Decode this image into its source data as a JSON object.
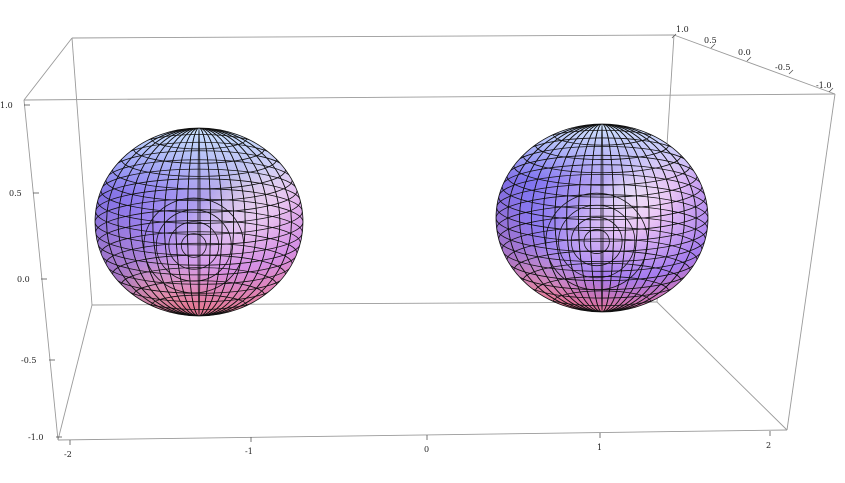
{
  "chart_data": {
    "type": "surface3d",
    "title": "",
    "description_shapes": "two spheres",
    "spheres": [
      {
        "center": [
          -1.2,
          0.0,
          0.4
        ],
        "radius": 0.5
      },
      {
        "center": [
          1.2,
          0.0,
          0.4
        ],
        "radius": 0.5
      }
    ],
    "axes": {
      "x": {
        "range": [
          -2.2,
          2.2
        ],
        "ticks": [
          "-2",
          "-1",
          "0",
          "1",
          "2"
        ]
      },
      "y": {
        "range": [
          -1.0,
          1.0
        ],
        "ticks": [
          "1.0",
          "0.5",
          "0.0",
          "-0.5",
          "-1.0"
        ]
      },
      "z": {
        "range": [
          -1.0,
          1.0
        ],
        "ticks": [
          "1.0",
          "0.5",
          "0.0",
          "-0.5",
          "-1.0"
        ]
      }
    },
    "colors": {
      "sphere_top": "#cfe6ff",
      "sphere_blue": "#6b6ef0",
      "sphere_violet": "#b98cf5",
      "sphere_pink": "#f08a9a",
      "sphere_peach": "#f7c7a5",
      "box_edge": "#9a9a9a"
    }
  }
}
